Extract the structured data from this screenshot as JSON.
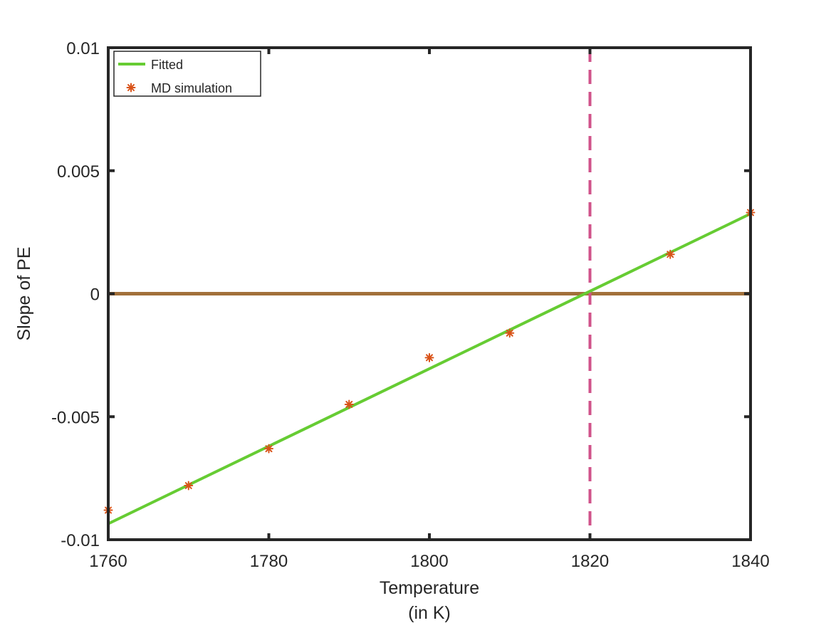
{
  "chart_data": {
    "type": "line",
    "title": "",
    "xlabel": [
      "Temperature",
      "(in K)"
    ],
    "ylabel": "Slope of PE",
    "xlim": [
      1760,
      1840
    ],
    "ylim": [
      -0.01,
      0.01
    ],
    "x_ticks": [
      1760,
      1780,
      1800,
      1820,
      1840
    ],
    "x_tick_labels": [
      "1760",
      "1780",
      "1800",
      "1820",
      "1840"
    ],
    "y_ticks": [
      -0.01,
      -0.005,
      0,
      0.005,
      0.01
    ],
    "y_tick_labels": [
      "-0.01",
      "-0.005",
      "0",
      "0.005",
      "0.01"
    ],
    "grid": false,
    "legend_position": "top-left",
    "series": [
      {
        "name": "Fitted",
        "kind": "line",
        "color": "#66cc33",
        "x": [
          1760,
          1840
        ],
        "y": [
          -0.00935,
          0.00325
        ]
      },
      {
        "name": "MD simulation",
        "kind": "markers",
        "marker": "asterisk",
        "color": "#d95319",
        "x": [
          1760,
          1770,
          1780,
          1790,
          1800,
          1810,
          1830,
          1840
        ],
        "y": [
          -0.0088,
          -0.0078,
          -0.0063,
          -0.0045,
          -0.0026,
          -0.0016,
          0.0016,
          0.0033
        ]
      }
    ],
    "reference_lines": [
      {
        "orientation": "horizontal",
        "value": 0,
        "color": "#a2703a",
        "style": "solid"
      },
      {
        "orientation": "vertical",
        "value": 1820,
        "color": "#d0528a",
        "style": "dashed"
      }
    ]
  }
}
